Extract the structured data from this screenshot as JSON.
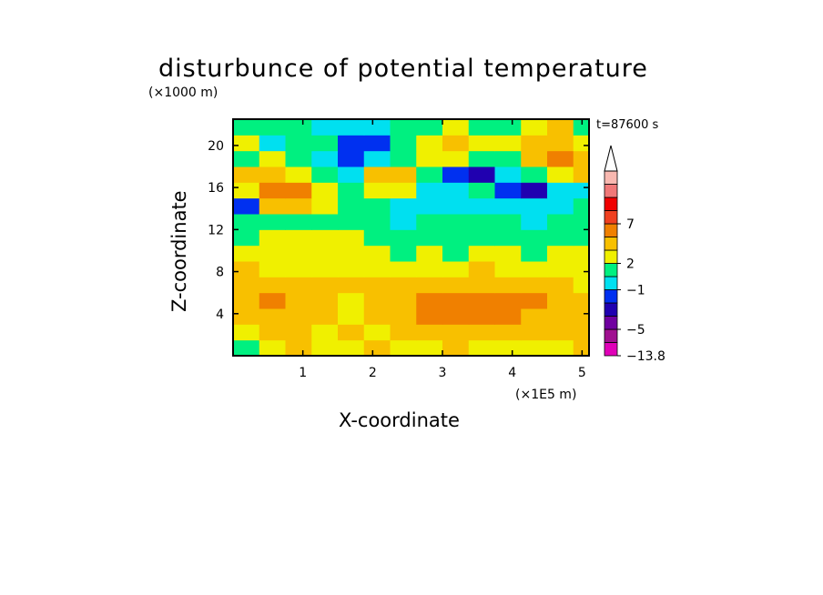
{
  "chart_data": {
    "type": "heatmap",
    "title": "disturbunce of potential temperature",
    "annotation": "t=87600 s",
    "xlabel": "X-coordinate",
    "ylabel": "Z-coordinate",
    "x_unit_note": "(×1E5 m)",
    "y_unit_note": "(×1000 m)",
    "xlim": [
      0,
      5.1
    ],
    "ylim": [
      0,
      22.5
    ],
    "x_ticks": [
      1,
      2,
      3,
      4,
      5
    ],
    "y_ticks": [
      4,
      8,
      12,
      16,
      20
    ],
    "grid": false,
    "colorbar": {
      "placement": "right",
      "extend": "max",
      "labels": [
        {
          "level": 10,
          "text": "7"
        },
        {
          "level": 7,
          "text": "2"
        },
        {
          "level": 5,
          "text": "−1"
        },
        {
          "level": 2,
          "text": "−5"
        },
        {
          "level": 0,
          "text": "−13.8"
        }
      ],
      "colors": [
        "#e000b8",
        "#a01090",
        "#7000a0",
        "#2000b0",
        "#0030f0",
        "#00e0f0",
        "#00f080",
        "#f0f000",
        "#f8c000",
        "#f08000",
        "#f04020",
        "#f00000",
        "#f07878",
        "#f8b8b0"
      ]
    },
    "field": {
      "levels_note": "index into colorbar.colors",
      "x": [
        0.0,
        0.375,
        0.75,
        1.125,
        1.5,
        1.875,
        2.25,
        2.625,
        3.0,
        3.375,
        3.75,
        4.125,
        4.5,
        4.875
      ],
      "z": [
        0.75,
        2.25,
        3.75,
        5.25,
        6.75,
        8.25,
        9.75,
        11.25,
        12.75,
        14.25,
        15.75,
        17.25,
        18.75,
        20.25,
        21.75
      ],
      "values": [
        [
          6,
          7,
          8,
          7,
          7,
          8,
          7,
          7,
          8,
          7,
          7,
          7,
          7,
          8
        ],
        [
          7,
          8,
          8,
          7,
          8,
          7,
          8,
          8,
          8,
          8,
          8,
          8,
          8,
          8
        ],
        [
          8,
          8,
          8,
          8,
          7,
          8,
          8,
          9,
          9,
          9,
          9,
          8,
          8,
          8
        ],
        [
          8,
          9,
          8,
          8,
          7,
          8,
          8,
          9,
          9,
          9,
          9,
          9,
          8,
          8
        ],
        [
          8,
          8,
          8,
          8,
          8,
          8,
          8,
          8,
          8,
          8,
          8,
          8,
          8,
          7
        ],
        [
          8,
          7,
          7,
          7,
          7,
          7,
          7,
          7,
          7,
          8,
          7,
          7,
          7,
          7
        ],
        [
          7,
          7,
          7,
          7,
          7,
          7,
          6,
          7,
          6,
          7,
          7,
          6,
          7,
          7
        ],
        [
          6,
          7,
          7,
          7,
          7,
          6,
          6,
          6,
          6,
          6,
          6,
          6,
          6,
          6
        ],
        [
          6,
          6,
          6,
          6,
          6,
          6,
          5,
          6,
          6,
          6,
          6,
          5,
          6,
          6
        ],
        [
          4,
          8,
          8,
          7,
          6,
          6,
          5,
          5,
          5,
          5,
          5,
          5,
          5,
          6
        ],
        [
          7,
          9,
          9,
          7,
          6,
          7,
          7,
          5,
          5,
          6,
          4,
          3,
          5,
          5
        ],
        [
          8,
          8,
          7,
          6,
          5,
          8,
          8,
          6,
          4,
          3,
          5,
          6,
          7,
          8
        ],
        [
          6,
          7,
          6,
          5,
          4,
          5,
          6,
          7,
          7,
          6,
          6,
          8,
          9,
          8
        ],
        [
          7,
          5,
          6,
          6,
          4,
          4,
          6,
          7,
          8,
          7,
          7,
          8,
          8,
          7
        ],
        [
          6,
          6,
          6,
          5,
          5,
          5,
          6,
          6,
          7,
          6,
          6,
          7,
          8,
          6
        ]
      ]
    }
  }
}
